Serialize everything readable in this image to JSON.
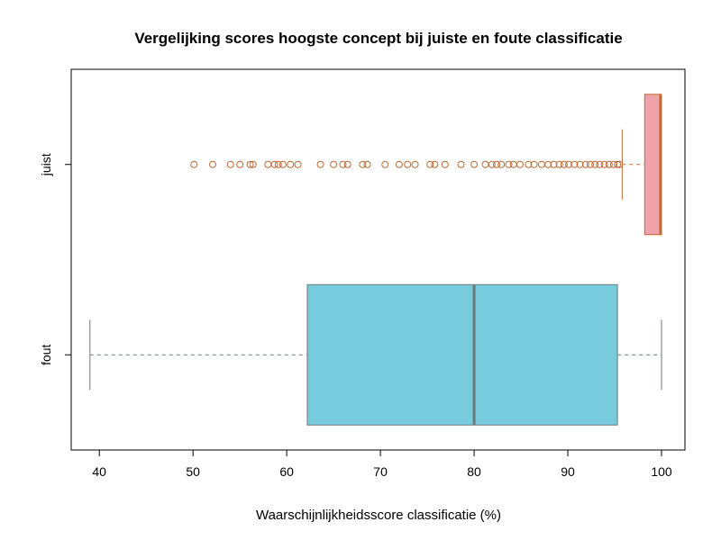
{
  "chart_data": {
    "type": "boxplot",
    "orientation": "horizontal",
    "title": "Vergelijking scores hoogste concept bij juiste en foute classificatie",
    "xlabel": "Waarschijnlijkheidsscore classificatie (%)",
    "ylabel": "",
    "xlim": [
      37,
      102.5
    ],
    "xticks": [
      40,
      50,
      60,
      70,
      80,
      90,
      100
    ],
    "grid": false,
    "legend": "none",
    "series": [
      {
        "name": "fout",
        "fill": "#77CBDD",
        "line": "#6B7B78",
        "min": 39.0,
        "q1": 62.2,
        "median": 80.0,
        "q3": 95.3,
        "max": 100.0,
        "outliers": []
      },
      {
        "name": "juist",
        "fill": "#F0A2AB",
        "line": "#BF6A35",
        "min": 95.8,
        "q1": 98.2,
        "median": 99.9,
        "q3": 100.0,
        "max": 100.0,
        "outliers": [
          50.1,
          52.1,
          54.0,
          55.0,
          56.1,
          56.4,
          58.0,
          58.7,
          59.1,
          59.6,
          60.4,
          61.2,
          63.6,
          65.0,
          66.0,
          66.5,
          68.1,
          68.6,
          70.5,
          72.0,
          72.9,
          73.7,
          75.3,
          75.8,
          76.9,
          78.6,
          80.0,
          81.2,
          81.9,
          82.4,
          82.9,
          83.7,
          84.2,
          84.9,
          85.8,
          86.4,
          87.2,
          87.9,
          88.5,
          89.1,
          89.6,
          90.1,
          90.7,
          91.3,
          91.9,
          92.4,
          92.9,
          93.4,
          93.9,
          94.4,
          94.9,
          95.3,
          95.5
        ]
      }
    ]
  }
}
